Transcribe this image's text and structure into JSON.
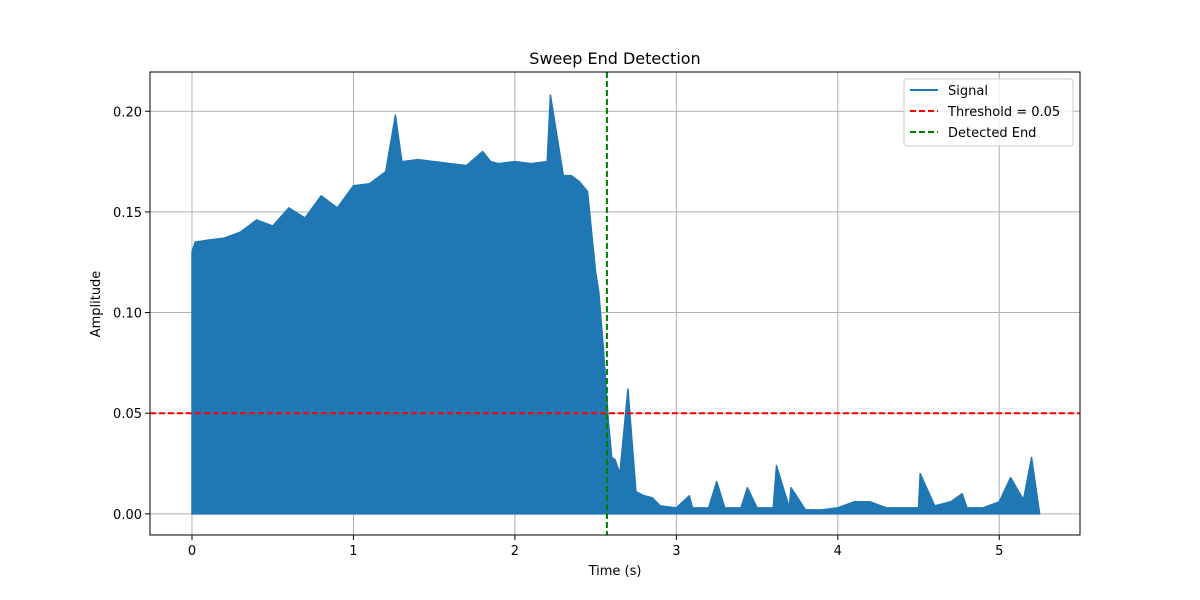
{
  "chart_data": {
    "type": "line",
    "title": "Sweep End Detection",
    "xlabel": "Time (s)",
    "ylabel": "Amplitude",
    "xlim": [
      -0.26,
      5.5
    ],
    "ylim": [
      -0.0105,
      0.2195
    ],
    "xticks": [
      0,
      1,
      2,
      3,
      4,
      5
    ],
    "xtick_labels": [
      "0",
      "1",
      "2",
      "3",
      "4",
      "5"
    ],
    "yticks": [
      0.0,
      0.05,
      0.1,
      0.15,
      0.2
    ],
    "ytick_labels": [
      "0.00",
      "0.05",
      "0.10",
      "0.15",
      "0.20"
    ],
    "grid": true,
    "legend_position": "top-right",
    "colors": {
      "signal": "#1f77b4",
      "threshold": "#ff0000",
      "detected_end": "#008000"
    },
    "series": [
      {
        "name": "Signal",
        "kind": "envelope",
        "x": [
          0.0,
          0.02,
          0.1,
          0.2,
          0.3,
          0.4,
          0.5,
          0.6,
          0.7,
          0.8,
          0.9,
          1.0,
          1.1,
          1.2,
          1.26,
          1.3,
          1.4,
          1.5,
          1.6,
          1.7,
          1.8,
          1.85,
          1.9,
          2.0,
          2.1,
          2.2,
          2.22,
          2.3,
          2.35,
          2.4,
          2.45,
          2.5,
          2.52,
          2.55,
          2.58,
          2.6,
          2.62,
          2.65,
          2.7,
          2.75,
          2.8,
          2.85,
          2.9,
          3.0,
          3.08,
          3.1,
          3.2,
          3.25,
          3.3,
          3.4,
          3.44,
          3.5,
          3.6,
          3.62,
          3.7,
          3.71,
          3.8,
          3.9,
          4.0,
          4.1,
          4.2,
          4.3,
          4.4,
          4.5,
          4.51,
          4.6,
          4.7,
          4.77,
          4.8,
          4.9,
          5.0,
          5.07,
          5.15,
          5.2,
          5.25
        ],
        "upper": [
          0.13,
          0.135,
          0.136,
          0.137,
          0.14,
          0.146,
          0.143,
          0.152,
          0.147,
          0.158,
          0.152,
          0.163,
          0.164,
          0.17,
          0.198,
          0.175,
          0.176,
          0.175,
          0.174,
          0.173,
          0.18,
          0.175,
          0.174,
          0.175,
          0.174,
          0.175,
          0.208,
          0.168,
          0.168,
          0.165,
          0.16,
          0.12,
          0.11,
          0.08,
          0.045,
          0.028,
          0.027,
          0.02,
          0.062,
          0.011,
          0.009,
          0.008,
          0.004,
          0.003,
          0.009,
          0.003,
          0.003,
          0.016,
          0.003,
          0.003,
          0.013,
          0.003,
          0.003,
          0.024,
          0.003,
          0.013,
          0.002,
          0.002,
          0.003,
          0.006,
          0.006,
          0.003,
          0.003,
          0.003,
          0.02,
          0.004,
          0.006,
          0.01,
          0.003,
          0.003,
          0.006,
          0.018,
          0.007,
          0.028,
          0.0
        ],
        "lower": [
          0.0,
          0.0,
          0.0,
          0.0,
          0.0,
          0.0,
          0.0,
          0.0,
          0.0,
          0.0,
          0.0,
          0.0,
          0.0,
          0.0,
          0.0,
          0.0,
          0.0,
          0.0,
          0.0,
          0.0,
          0.0,
          0.0,
          0.0,
          0.0,
          0.0,
          0.0,
          0.0,
          0.0,
          0.0,
          0.0,
          0.0,
          0.0,
          0.0,
          0.0,
          0.0,
          0.0,
          0.0,
          0.0,
          0.0,
          0.0,
          0.0,
          0.0,
          0.0,
          0.0,
          0.0,
          0.0,
          0.0,
          0.0,
          0.0,
          0.0,
          0.0,
          0.0,
          0.0,
          0.0,
          0.0,
          0.0,
          0.0,
          0.0,
          0.0,
          0.0,
          0.0,
          0.0,
          0.0,
          0.0,
          0.0,
          0.0,
          0.0,
          0.0,
          0.0,
          0.0,
          0.0,
          0.0,
          0.0,
          0.0,
          0.0
        ]
      },
      {
        "name": "Threshold = 0.05",
        "kind": "hline",
        "y": 0.05
      },
      {
        "name": "Detected End",
        "kind": "vline",
        "x": 2.57
      }
    ]
  }
}
